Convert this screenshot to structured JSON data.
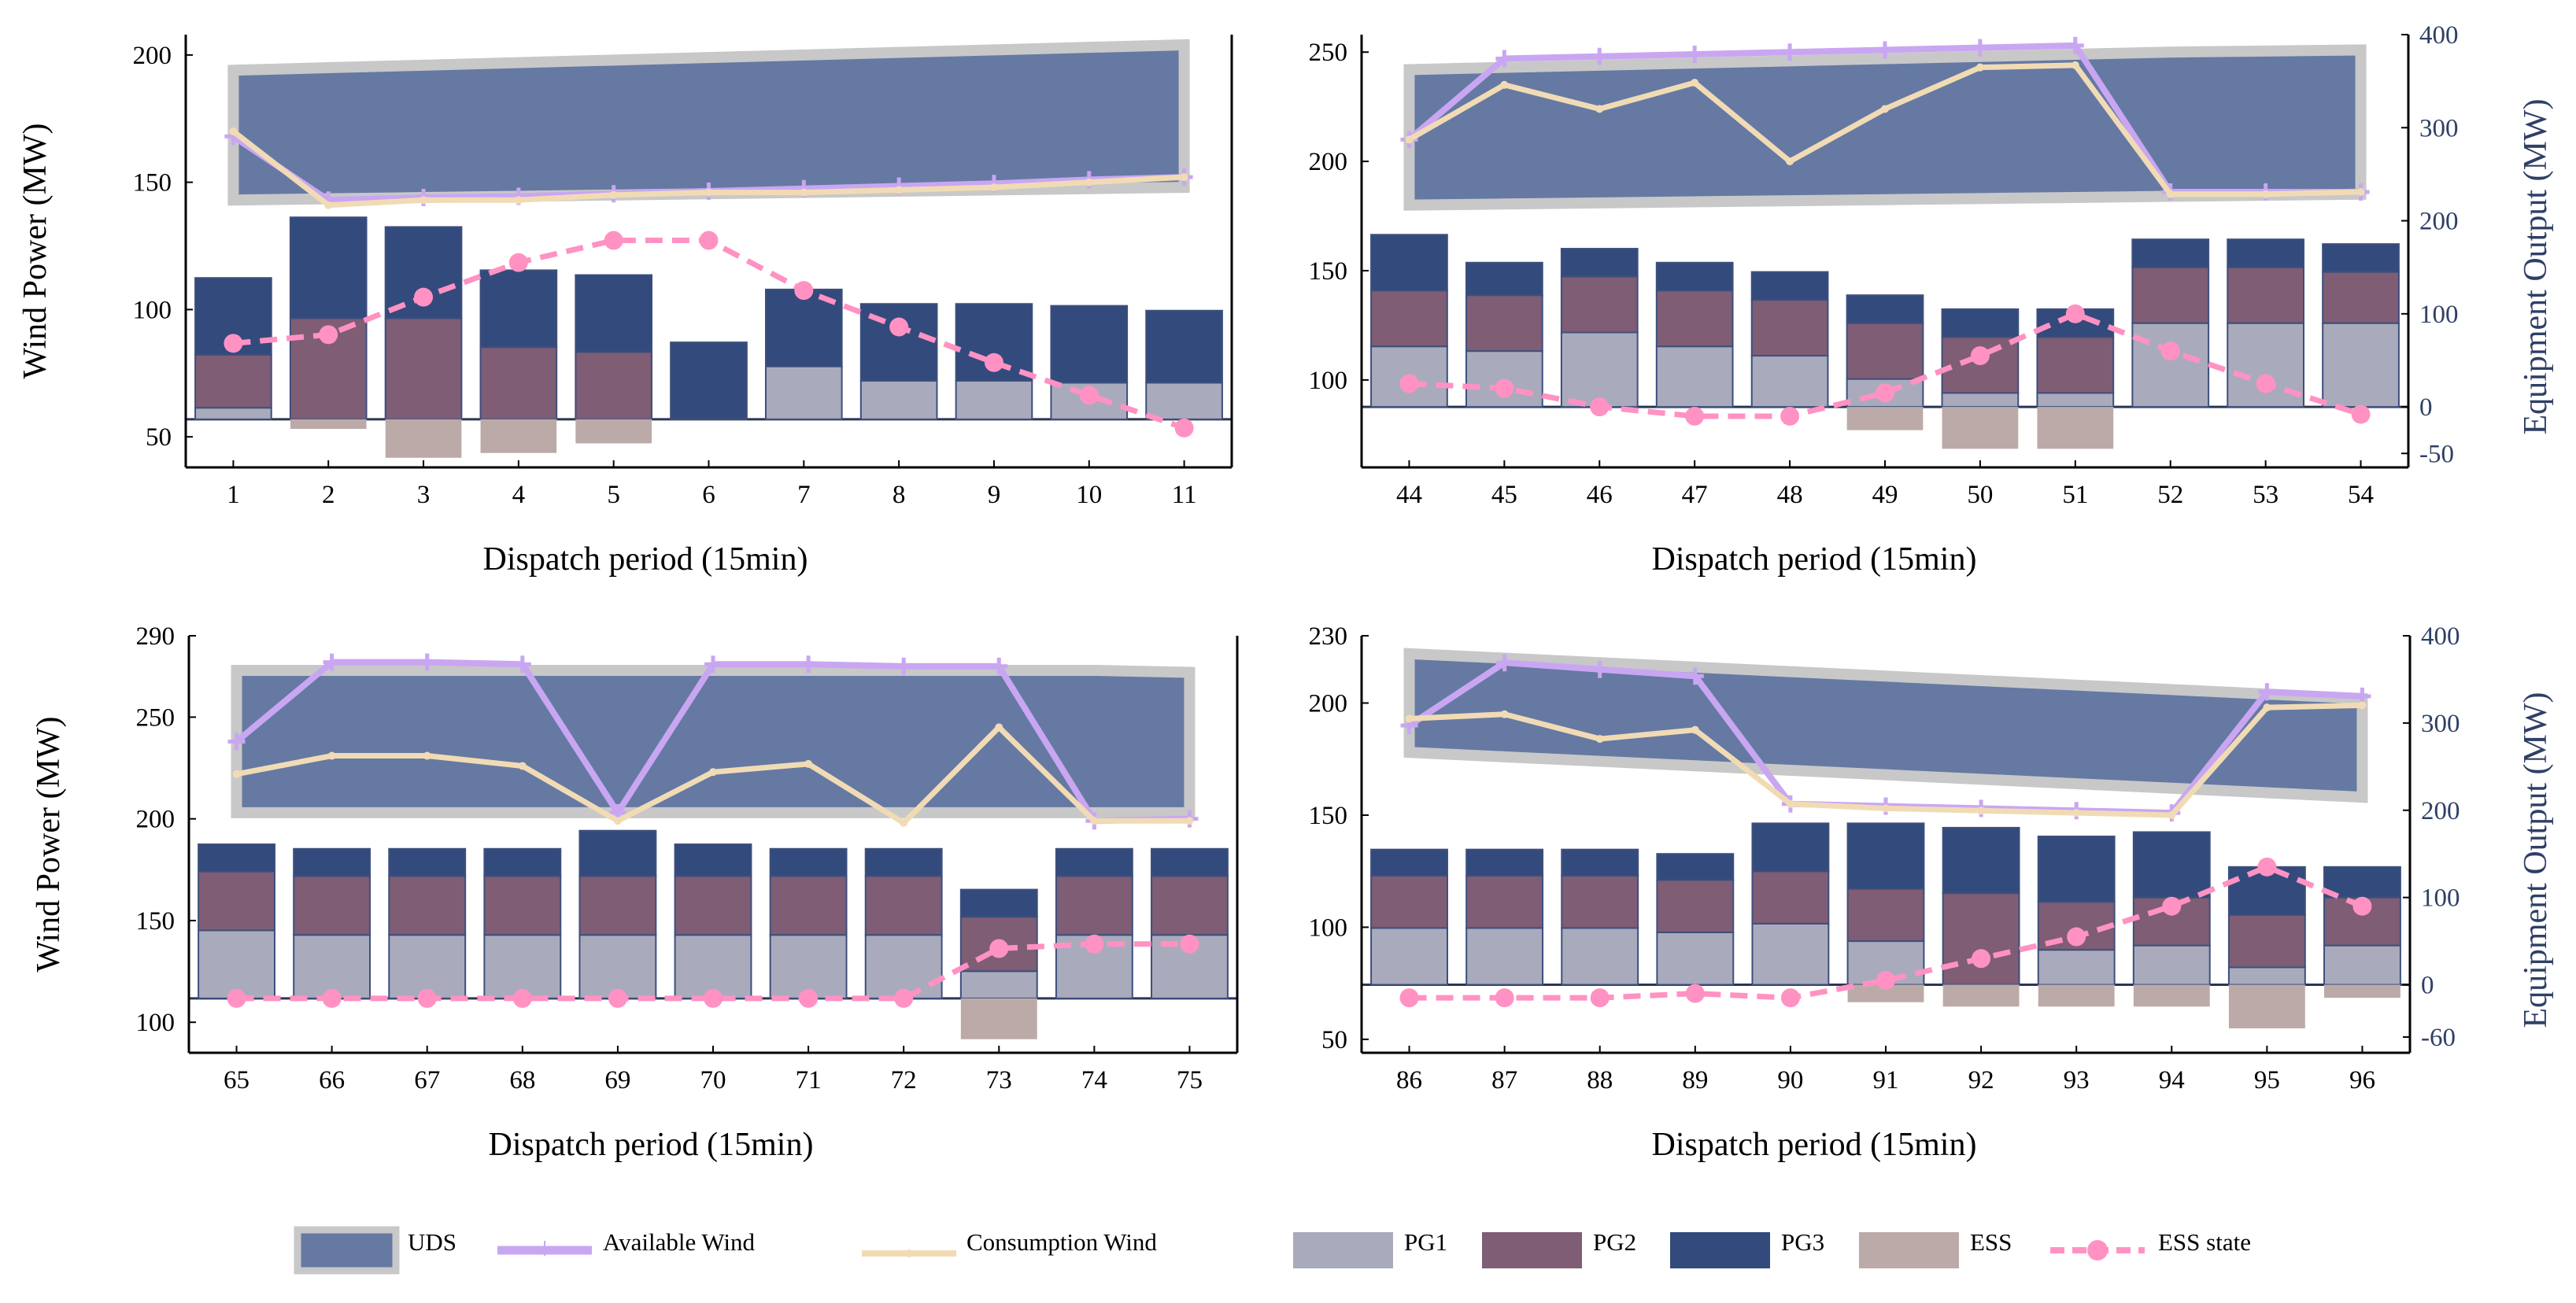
{
  "colors": {
    "uds_fill": "#6579a3",
    "uds_border": "#c8c8c8",
    "avail": "#c9a6f2",
    "cons": "#f1dbb5",
    "pg1": "#a9abbc",
    "pg2": "#7f5d75",
    "pg3": "#334a7d",
    "ess": "#bcaaa8",
    "ess_state": "#ff92c3",
    "axis": "#000000",
    "right_axis": "#2f3f66"
  },
  "legend": {
    "uds": "UDS",
    "avail": "Available Wind",
    "cons": "Consumption Wind",
    "pg1": "PG1",
    "pg2": "PG2",
    "pg3": "PG3",
    "ess": "ESS",
    "ess_state": "ESS state"
  },
  "chart_data": [
    {
      "type": "bar",
      "panel": "top-left",
      "xlabel": "Dispatch period (15min)",
      "ylabel": "Wind Power (MW)",
      "y2label": "",
      "x": [
        "1",
        "2",
        "3",
        "4",
        "5",
        "6",
        "7",
        "8",
        "9",
        "10",
        "11"
      ],
      "ylim": [
        38,
        208
      ],
      "yticks": [
        50,
        100,
        150,
        200
      ],
      "y2lim": [
        -50,
        400
      ],
      "y2ticks": [],
      "uds_lower": [
        143,
        143.5,
        144,
        144.5,
        145,
        145.5,
        146,
        146.5,
        147,
        147.5,
        148
      ],
      "uds_upper": [
        194,
        195,
        196,
        197,
        198,
        199,
        200,
        201,
        202,
        203,
        204
      ],
      "available_wind": [
        168,
        143,
        144,
        144.5,
        145.5,
        146.5,
        147.5,
        148.5,
        149.5,
        151,
        152
      ],
      "consumption_wind": [
        170,
        141,
        143,
        143,
        145,
        146,
        146,
        147,
        148,
        150,
        152
      ],
      "ess_state": [
        79,
        88,
        127,
        163,
        186,
        186,
        134,
        96,
        59,
        25,
        -9
      ],
      "pg1": [
        12,
        0,
        0,
        0,
        0,
        0,
        55,
        40,
        40,
        38,
        38
      ],
      "pg2": [
        55,
        105,
        105,
        75,
        70,
        0,
        0,
        0,
        0,
        0,
        0
      ],
      "pg3": [
        80,
        105,
        95,
        80,
        80,
        80,
        80,
        80,
        80,
        80,
        75
      ],
      "ess": [
        0,
        -10,
        -40,
        -35,
        -25,
        0,
        0,
        0,
        0,
        0,
        0
      ]
    },
    {
      "type": "bar",
      "panel": "top-right",
      "xlabel": "Dispatch period (15min)",
      "ylabel": "",
      "y2label": "Equipment Output (MW)",
      "x": [
        "44",
        "45",
        "46",
        "47",
        "48",
        "49",
        "50",
        "51",
        "52",
        "53",
        "54"
      ],
      "ylim": [
        60,
        258
      ],
      "yticks": [
        100,
        150,
        200,
        250
      ],
      "y2lim": [
        -65,
        400
      ],
      "y2ticks": [
        -50,
        0,
        100,
        200,
        300,
        400
      ],
      "uds_lower": [
        180,
        180.5,
        181,
        181.5,
        182,
        182.5,
        183,
        183.5,
        184,
        184.5,
        185
      ],
      "uds_upper": [
        242,
        243,
        244,
        245,
        246,
        247,
        248,
        249,
        250,
        250.5,
        251
      ],
      "available_wind": [
        210,
        247,
        248,
        249,
        250,
        251,
        252,
        253,
        186,
        186,
        186
      ],
      "consumption_wind": [
        210,
        235,
        224,
        236,
        200,
        224,
        243,
        244,
        185,
        185,
        186
      ],
      "ess_state": [
        25,
        20,
        0,
        -10,
        -10,
        15,
        55,
        100,
        60,
        25,
        -8
      ],
      "pg1": [
        65,
        60,
        80,
        65,
        55,
        30,
        15,
        15,
        90,
        90,
        90
      ],
      "pg2": [
        60,
        60,
        60,
        60,
        60,
        60,
        60,
        60,
        60,
        60,
        55
      ],
      "pg3": [
        60,
        35,
        30,
        30,
        30,
        30,
        30,
        30,
        30,
        30,
        30
      ],
      "ess": [
        0,
        0,
        0,
        0,
        0,
        -25,
        -45,
        -45,
        0,
        0,
        0
      ]
    },
    {
      "type": "bar",
      "panel": "bottom-left",
      "xlabel": "Dispatch period (15min)",
      "ylabel": "Wind Power (MW)",
      "y2label": "",
      "x": [
        "65",
        "66",
        "67",
        "68",
        "69",
        "70",
        "71",
        "72",
        "73",
        "74",
        "75"
      ],
      "ylim": [
        85,
        290
      ],
      "yticks": [
        100,
        150,
        200,
        250,
        290
      ],
      "y2lim": [
        -60,
        400
      ],
      "y2ticks": [],
      "uds_lower": [
        203,
        203,
        203,
        203,
        203,
        203,
        203,
        203,
        203,
        203,
        203
      ],
      "uds_upper": [
        273,
        273,
        273,
        273,
        273,
        273,
        273,
        273,
        273,
        273,
        272
      ],
      "available_wind": [
        238,
        277,
        277,
        276,
        203,
        276,
        276,
        275,
        275,
        199,
        200
      ],
      "consumption_wind": [
        222,
        231,
        231,
        226,
        199,
        223,
        227,
        198,
        245,
        199,
        199
      ],
      "ess_state": [
        0,
        0,
        0,
        0,
        0,
        0,
        0,
        0,
        55,
        60,
        60
      ],
      "pg1": [
        75,
        70,
        70,
        70,
        70,
        70,
        70,
        70,
        30,
        70,
        70
      ],
      "pg2": [
        65,
        65,
        65,
        65,
        65,
        65,
        65,
        65,
        60,
        65,
        65
      ],
      "pg3": [
        30,
        30,
        30,
        30,
        50,
        35,
        30,
        30,
        30,
        30,
        30
      ],
      "ess": [
        0,
        0,
        0,
        0,
        0,
        0,
        0,
        0,
        -45,
        0,
        0
      ]
    },
    {
      "type": "bar",
      "panel": "bottom-right",
      "xlabel": "Dispatch period (15min)",
      "ylabel": "",
      "y2label": "Equipment Output (MW)",
      "x": [
        "86",
        "87",
        "88",
        "89",
        "90",
        "91",
        "92",
        "93",
        "94",
        "95",
        "96"
      ],
      "ylim": [
        44,
        230
      ],
      "yticks": [
        50,
        100,
        150,
        200,
        230
      ],
      "y2lim": [
        -78,
        400
      ],
      "y2ticks": [
        -60,
        0,
        100,
        200,
        300,
        400
      ],
      "uds_lower": [
        178,
        176,
        174,
        172,
        170,
        168,
        166,
        164,
        162,
        160,
        158
      ],
      "uds_upper": [
        222,
        220,
        218,
        216,
        214,
        212,
        210,
        208,
        206,
        204,
        202
      ],
      "available_wind": [
        190,
        218,
        215,
        212,
        155,
        154,
        153,
        152,
        151,
        205,
        203
      ],
      "consumption_wind": [
        193,
        195,
        184,
        188,
        155,
        153,
        152,
        151,
        150,
        198,
        199
      ],
      "ess_state": [
        -15,
        -15,
        -15,
        -10,
        -15,
        5,
        30,
        55,
        90,
        135,
        90
      ],
      "pg1": [
        65,
        65,
        65,
        60,
        70,
        50,
        0,
        40,
        45,
        20,
        45
      ],
      "pg2": [
        60,
        60,
        60,
        60,
        60,
        60,
        105,
        55,
        55,
        60,
        55
      ],
      "pg3": [
        30,
        30,
        30,
        30,
        55,
        75,
        75,
        75,
        75,
        55,
        35
      ],
      "ess": [
        0,
        0,
        0,
        0,
        0,
        -20,
        -25,
        -25,
        -25,
        -50,
        -15
      ]
    }
  ]
}
